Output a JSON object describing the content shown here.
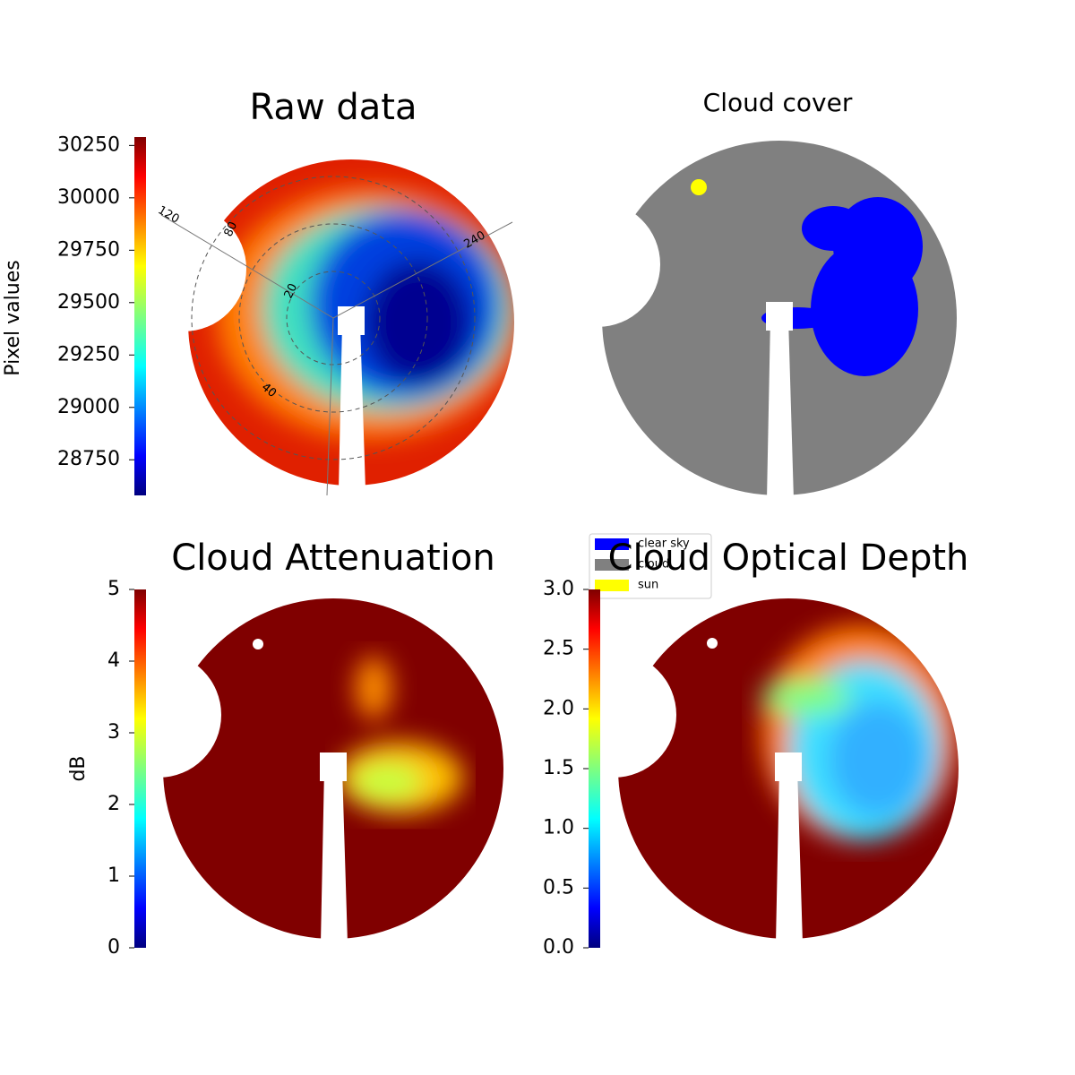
{
  "chart_data": [
    {
      "type": "image",
      "title": "Raw data",
      "colorbar": {
        "label": "Pixel values",
        "clim": [
          28580,
          30290
        ],
        "ticks": [
          28750,
          29000,
          29250,
          29500,
          29750,
          30000,
          30250
        ]
      },
      "annotations": [
        "120",
        "80",
        "20",
        "40",
        "240"
      ]
    },
    {
      "type": "image",
      "title": "Cloud cover",
      "series": [
        {
          "name": "clear sky",
          "color": "#0000ff"
        },
        {
          "name": "cloud",
          "color": "#808080"
        },
        {
          "name": "sun",
          "color": "#ffff00"
        }
      ]
    },
    {
      "type": "image",
      "title": "Cloud Attenuation",
      "colorbar": {
        "label": "dB",
        "clim": [
          0,
          5
        ],
        "ticks": [
          0,
          1,
          2,
          3,
          4,
          5
        ]
      }
    },
    {
      "type": "image",
      "title": "Cloud Optical Depth",
      "colorbar": {
        "clim": [
          0,
          3
        ],
        "ticks": [
          {
            "value": 0,
            "label": "0.0"
          },
          0.5,
          {
            "value": 1,
            "label": "1.0"
          },
          1.5,
          {
            "value": 2,
            "label": "2.0"
          },
          2.5,
          {
            "value": 3,
            "label": "3.0"
          }
        ]
      }
    }
  ]
}
